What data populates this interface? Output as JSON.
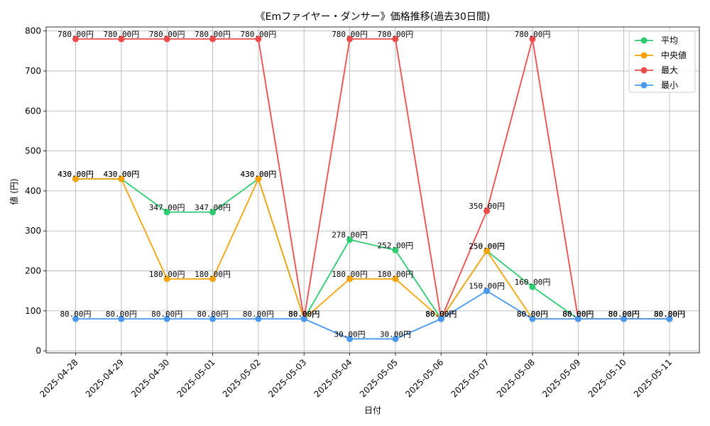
{
  "chart_data": {
    "type": "line",
    "title": "《Emファイヤー・ダンサー》価格推移(過去30日間)",
    "xlabel": "日付",
    "ylabel": "値 (円)",
    "ylim": [
      -5,
      810
    ],
    "yticks": [
      0,
      100,
      200,
      300,
      400,
      500,
      600,
      700,
      800
    ],
    "grid": true,
    "legend_position": "top-right",
    "value_suffix": "円",
    "categories": [
      "2025-04-28",
      "2025-04-29",
      "2025-04-30",
      "2025-05-01",
      "2025-05-02",
      "2025-05-03",
      "2025-05-04",
      "2025-05-05",
      "2025-05-06",
      "2025-05-07",
      "2025-05-08",
      "2025-05-09",
      "2025-05-10",
      "2025-05-11"
    ],
    "series": [
      {
        "name": "平均",
        "color": "#2ecc71",
        "values": [
          430,
          430,
          347,
          347,
          430,
          80,
          278,
          252,
          80,
          250,
          160,
          80,
          80,
          80
        ]
      },
      {
        "name": "中央値",
        "color": "#f5a30a",
        "values": [
          430,
          430,
          180,
          180,
          430,
          80,
          180,
          180,
          80,
          250,
          80,
          80,
          80,
          80
        ]
      },
      {
        "name": "最大",
        "color": "#ee4b4b",
        "values": [
          780,
          780,
          780,
          780,
          780,
          80,
          780,
          780,
          80,
          350,
          780,
          80,
          80,
          80
        ]
      },
      {
        "name": "最小",
        "color": "#4a98f0",
        "values": [
          80,
          80,
          80,
          80,
          80,
          80,
          30,
          30,
          80,
          150,
          80,
          80,
          80,
          80
        ]
      }
    ]
  }
}
